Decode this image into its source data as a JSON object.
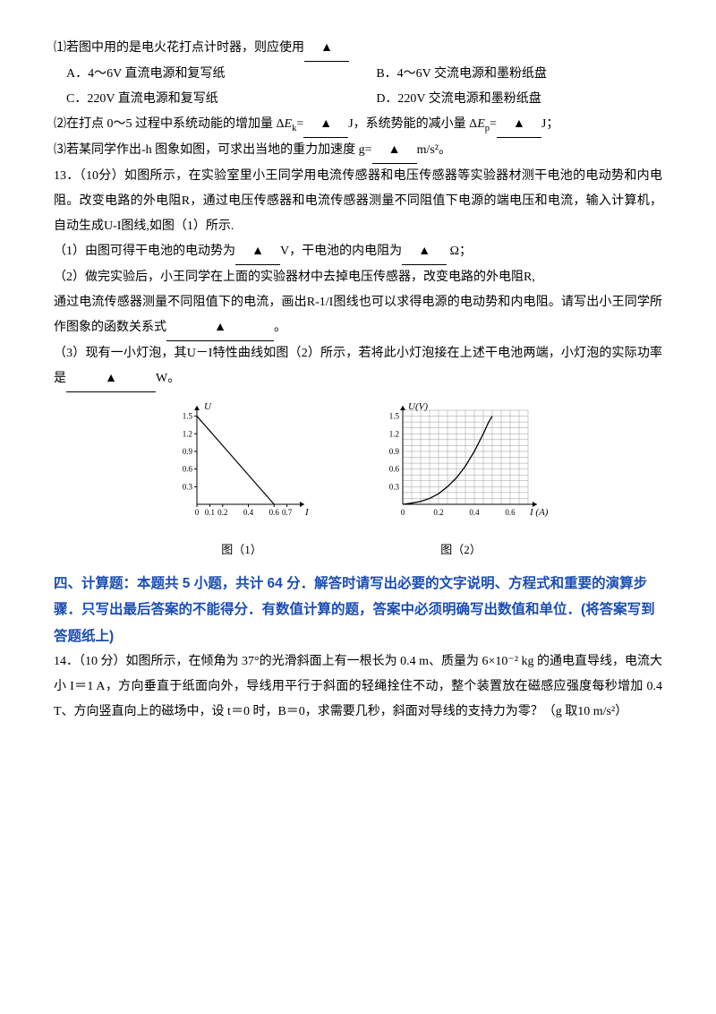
{
  "q12": {
    "l1": "⑴若图中用的是电火花打点计时器，则应使用",
    "optA": "A．4～6V 直流电源和复写纸",
    "optB": "B．4～6V 交流电源和墨粉纸盘",
    "optC": "C．220V 直流电源和复写纸",
    "optD": "D．220V 交流电源和墨粉纸盘",
    "l2a": "⑵在打点 0～5 过程中系统动能的增加量 Δ",
    "l2b": "J，系统势能的减小量 Δ",
    "l2c": "J；",
    "l3a": "⑶若某同学作出-h 图象如图，可求出当地的重力加速度 g=",
    "l3b": "m/s²。"
  },
  "q13": {
    "l1": "13．（10分）如图所示，在实验室里小王同学用电流传感器和电压传感器等实验器材测干电池的电动势和内电阻。改变电路的外电阻R，通过电压传感器和电流传感器测量不同阻值下电源的端电压和电流，输入计算机，自动生成U-I图线,如图（1）所示.",
    "l2a": "（1）由图可得干电池的电动势为",
    "l2b": "V，干电池的内电阻为",
    "l2c": " Ω；",
    "l3": "（2）做完实验后，小王同学在上面的实验器材中去掉电压传感器，改变电路的外电阻R,",
    "l4": "通过电流传感器测量不同阻值下的电流，画出R-1/I图线也可以求得电源的电动势和内电阻。请写出小王同学所作图象的函数关系式",
    "l4b": "。",
    "l5a": "（3）现有一小灯泡，其U－I特性曲线如图（2）所示，若将此小灯泡接在上述干电池两端，小灯泡的实际功率是",
    "l5b": "W。"
  },
  "fig1": {
    "caption": "图（1）",
    "y_label": "U",
    "x_label": "I",
    "y_ticks": [
      "0.3",
      "0.6",
      "0.9",
      "1.2",
      "1.5"
    ],
    "x_ticks": [
      "0",
      "0.1",
      "0.2",
      "0.4",
      "0.6",
      "0.7"
    ],
    "line": {
      "x1": 0,
      "y1": 1.5,
      "x2": 0.6,
      "y2": 0
    },
    "colors": {
      "stroke": "#000000",
      "bg": "#ffffff"
    }
  },
  "fig2": {
    "caption": "图（2）",
    "y_label": "U(V)",
    "x_label": "I (A)",
    "y_ticks": [
      "0.3",
      "0.6",
      "0.9",
      "1.2",
      "1.5"
    ],
    "x_ticks": [
      "0",
      "0.2",
      "0.4",
      "0.6"
    ],
    "curve": [
      [
        0.0,
        0.0
      ],
      [
        0.05,
        0.02
      ],
      [
        0.1,
        0.05
      ],
      [
        0.15,
        0.1
      ],
      [
        0.2,
        0.18
      ],
      [
        0.25,
        0.3
      ],
      [
        0.3,
        0.45
      ],
      [
        0.35,
        0.65
      ],
      [
        0.4,
        0.9
      ],
      [
        0.45,
        1.2
      ],
      [
        0.48,
        1.4
      ],
      [
        0.5,
        1.5
      ]
    ],
    "colors": {
      "grid": "#999999",
      "stroke": "#000000",
      "bg": "#ffffff"
    }
  },
  "section4": {
    "t1": "四、计算题：本题共 5 小题，共计 64 分．解答时请写出必要的文字说明、方程式和重要的演算步骤．只写出最后答案的不能得分．有数值计算的题，答案中必须明确写出数值和单位．(将答案写到答题纸上)"
  },
  "q14": {
    "t": "14．（10 分）如图所示，在倾角为 37°的光滑斜面上有一根长为 0.4 m、质量为 6×10⁻² kg 的通电直导线，电流大小 I＝1  A，方向垂直于纸面向外，导线用平行于斜面的轻绳拴住不动，整个装置放在磁感应强度每秒增加 0.4 T、方向竖直向上的磁场中，设 t＝0 时，B＝0，求需要几秒，斜面对导线的支持力为零？（g 取10 m/s²）"
  },
  "mark": "▲"
}
